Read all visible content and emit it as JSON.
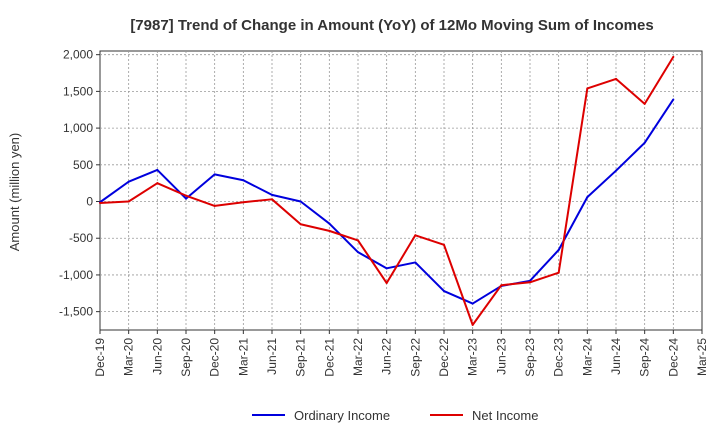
{
  "chart_data": {
    "type": "line",
    "title": "[7987]  Trend of Change in Amount (YoY) of 12Mo Moving Sum of Incomes",
    "xlabel": "",
    "ylabel": "Amount (million yen)",
    "ylim": [
      -1750,
      2050
    ],
    "yticks": [
      2000,
      1500,
      1000,
      500,
      0,
      -500,
      -1000,
      -1500
    ],
    "ytick_labels": [
      "2,000",
      "1,500",
      "1,000",
      "500",
      "0",
      "-500",
      "-1,000",
      "-1,500"
    ],
    "categories": [
      "Dec-19",
      "Mar-20",
      "Jun-20",
      "Sep-20",
      "Dec-20",
      "Mar-21",
      "Jun-21",
      "Sep-21",
      "Dec-21",
      "Mar-22",
      "Jun-22",
      "Sep-22",
      "Dec-22",
      "Mar-23",
      "Jun-23",
      "Sep-23",
      "Dec-23",
      "Mar-24",
      "Jun-24",
      "Sep-24",
      "Dec-24",
      "Mar-25"
    ],
    "grid": true,
    "legend_position": "bottom",
    "series": [
      {
        "name": "Ordinary Income",
        "color": "#0000dd",
        "values": [
          -10,
          270,
          430,
          40,
          370,
          290,
          90,
          0,
          -300,
          -690,
          -910,
          -830,
          -1220,
          -1390,
          -1150,
          -1080,
          -660,
          60,
          420,
          800,
          1390,
          null
        ]
      },
      {
        "name": "Net Income",
        "color": "#dd0000",
        "values": [
          -20,
          0,
          250,
          80,
          -60,
          -10,
          30,
          -310,
          -400,
          -530,
          -1110,
          -460,
          -590,
          -1680,
          -1140,
          -1100,
          -970,
          1540,
          1670,
          1330,
          1970,
          null
        ]
      }
    ]
  }
}
